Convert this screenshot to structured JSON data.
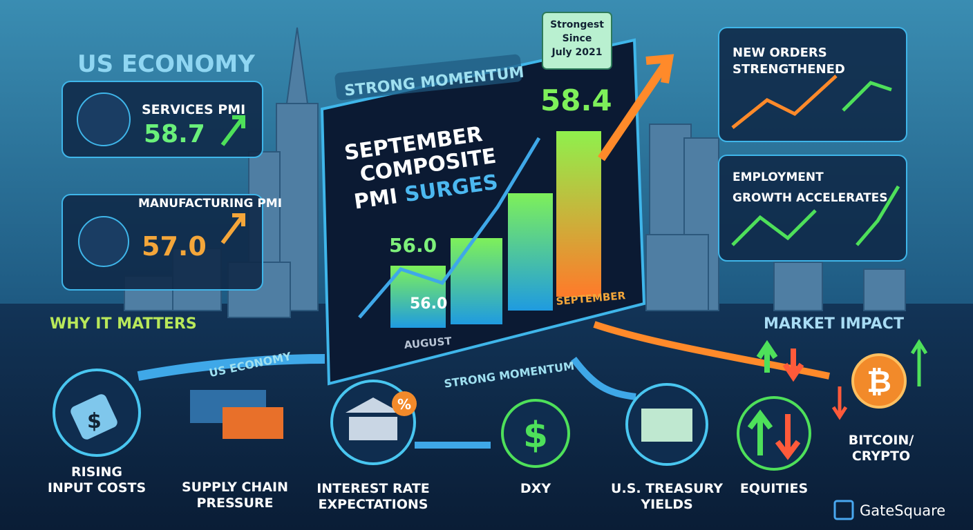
{
  "header": {
    "title": "US ECONOMY",
    "tag": "STRONG MOMENTUM",
    "badge": [
      "Strongest",
      "Since",
      "July 2021"
    ]
  },
  "pmi_cards": [
    {
      "label": "SERVICES PMI",
      "value": "58.7"
    },
    {
      "label": "MANUFACTURING PMI",
      "value": "57.0"
    }
  ],
  "main_panel": {
    "headline": [
      "SEPTEMBER",
      "COMPOSITE",
      "PMI",
      "SURGES"
    ],
    "current_value": "58.4",
    "previous_value": "56.0",
    "previous_bar_label": "56.0",
    "months": [
      "AUGUST",
      "SEPTEMBER"
    ]
  },
  "right_cards": [
    {
      "lines": [
        "NEW ORDERS",
        "STRENGTHENED"
      ]
    },
    {
      "lines": [
        "EMPLOYMENT",
        "GROWTH ACCELERATES"
      ]
    }
  ],
  "sections": {
    "why": "WHY IT MATTERS",
    "market": "MARKET IMPACT"
  },
  "arrow_labels": [
    "US ECONOMY",
    "STRONG MOMENTUM"
  ],
  "impacts": [
    {
      "lines": [
        "RISING",
        "INPUT COSTS"
      ]
    },
    {
      "lines": [
        "SUPPLY CHAIN",
        "PRESSURE"
      ]
    },
    {
      "lines": [
        "INTEREST RATE",
        "EXPECTATIONS"
      ]
    },
    {
      "lines": [
        "DXY"
      ]
    },
    {
      "lines": [
        "U.S. TREASURY",
        "YIELDS"
      ]
    },
    {
      "lines": [
        "EQUITIES"
      ]
    },
    {
      "lines": [
        "BITCOIN/",
        "CRYPTO"
      ]
    }
  ],
  "icons": {
    "dollar": "$",
    "percent": "%",
    "bitcoin": "₿",
    "tag_dollar": "$"
  },
  "logo": "GateSquare"
}
